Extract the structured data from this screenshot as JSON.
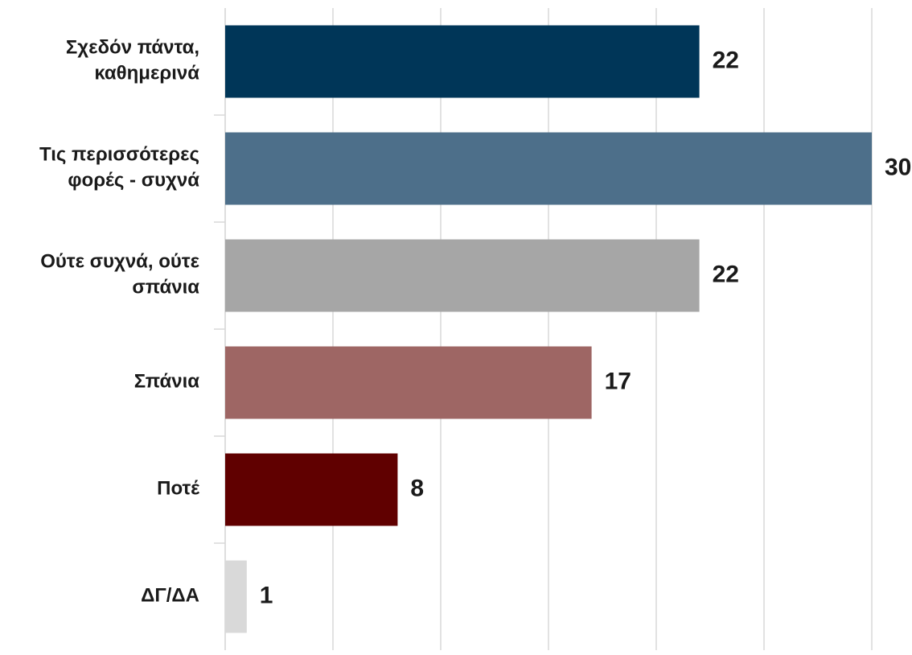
{
  "chart_data": {
    "type": "barh",
    "categories": [
      "Σχεδόν πάντα,\nκαθημερινά",
      "Τις περισσότερες\nφορές - συχνά",
      "Ούτε συχνά, ούτε\nσπάνια",
      "Σπάνια",
      "Ποτέ",
      "ΔΓ/ΔΑ"
    ],
    "values": [
      22,
      30,
      22,
      17,
      8,
      1
    ],
    "colors": [
      "#003658",
      "#4d6f8a",
      "#a6a6a6",
      "#9e6664",
      "#600000",
      "#d9d9d9"
    ],
    "xlim": [
      0,
      30
    ],
    "xticks": [
      0,
      5,
      10,
      15,
      20,
      25,
      30
    ],
    "grid": true
  }
}
